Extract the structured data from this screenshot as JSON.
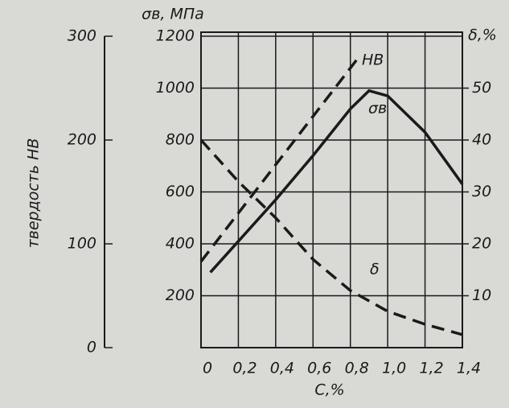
{
  "chart_data": {
    "type": "line",
    "x_label": "C,%",
    "y_label": "σв, МПа",
    "y2_label": "δ,%",
    "y3_label": "твердость HB",
    "xlim": [
      0,
      1.4
    ],
    "xticks": [
      0,
      {
        "value": 0.2,
        "label": "0,2"
      },
      {
        "value": 0.4,
        "label": "0,4"
      },
      {
        "value": 0.6,
        "label": "0,6"
      },
      {
        "value": 0.8,
        "label": "0,8"
      },
      {
        "value": 1.0,
        "label": "1,0"
      },
      {
        "value": 1.2,
        "label": "1,2"
      },
      {
        "value": 1.4,
        "label": "1,4"
      }
    ],
    "ylim": [
      0,
      1200
    ],
    "yticks": [
      200,
      400,
      600,
      800,
      1000,
      1200
    ],
    "y2lim": [
      0,
      60
    ],
    "y2ticks": [
      10,
      20,
      30,
      40,
      50
    ],
    "y3lim": [
      0,
      300
    ],
    "y3ticks": [
      0,
      100,
      200,
      300
    ],
    "grid": true,
    "series": [
      {
        "name": "HB",
        "color": "#1a1a1a",
        "dash": true,
        "axis": "y3",
        "x": [
          0,
          0.85
        ],
        "values": [
          83,
          281
        ]
      },
      {
        "name": "σв",
        "color": "#1a1a1a",
        "dash": false,
        "axis": "y",
        "x": [
          0.05,
          0.2,
          0.4,
          0.6,
          0.8,
          0.9,
          1.0,
          1.2,
          1.4
        ],
        "values": [
          290,
          410,
          570,
          740,
          920,
          990,
          970,
          830,
          630
        ]
      },
      {
        "name": "δ",
        "color": "#1a1a1a",
        "dash": true,
        "axis": "y2",
        "x": [
          0,
          0.2,
          0.4,
          0.6,
          0.8,
          1.0,
          1.2,
          1.4
        ],
        "values": [
          40,
          32,
          25,
          17,
          11,
          7,
          4.5,
          2.5
        ]
      }
    ]
  }
}
